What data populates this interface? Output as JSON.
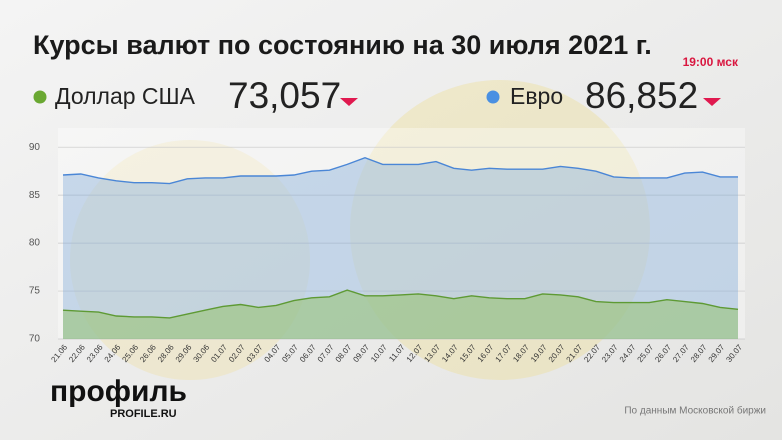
{
  "chart_data": {
    "type": "area-line",
    "title": "Курсы валют по состоянию на 30 июля 2021 г.",
    "subtitle": "19:00 мск",
    "source": "По данным Московской биржи",
    "brand": "профиль",
    "brand_site": "PROFILE.RU",
    "categories": [
      "21.06",
      "22.06",
      "23.06",
      "24.06",
      "25.06",
      "26.06",
      "28.06",
      "29.06",
      "30.06",
      "01.07",
      "02.07",
      "03.07",
      "04.07",
      "05.07",
      "06.07",
      "07.07",
      "08.07",
      "09.07",
      "10.07",
      "11.07",
      "12.07",
      "13.07",
      "14.07",
      "15.07",
      "16.07",
      "17.07",
      "18.07",
      "19.07",
      "20.07",
      "21.07",
      "22.07",
      "23.07",
      "24.07",
      "25.07",
      "26.07",
      "27.07",
      "28.07",
      "29.07",
      "30.07"
    ],
    "series": [
      {
        "name": "Евро",
        "color": "#4a86d6",
        "dot_color": "#4a90e2",
        "fill": "rgba(120,165,215,0.38)",
        "current_value": 86.852,
        "current_label": "86,852",
        "values": [
          87.1,
          87.2,
          86.8,
          86.5,
          86.3,
          86.3,
          86.2,
          86.7,
          86.8,
          86.8,
          87.0,
          87.0,
          87.0,
          87.1,
          87.5,
          87.6,
          88.2,
          88.9,
          88.2,
          88.2,
          88.2,
          88.5,
          87.8,
          87.6,
          87.8,
          87.7,
          87.7,
          87.7,
          88.0,
          87.8,
          87.5,
          86.9,
          86.8,
          86.8,
          86.8,
          87.3,
          87.4,
          86.9,
          86.9
        ]
      },
      {
        "name": "Доллар США",
        "color": "#5e9a34",
        "dot_color": "#6aa832",
        "fill": "rgba(140,190,85,0.45)",
        "current_value": 73.057,
        "current_label": "73,057",
        "values": [
          73.0,
          72.9,
          72.8,
          72.4,
          72.3,
          72.3,
          72.2,
          72.6,
          73.0,
          73.4,
          73.6,
          73.3,
          73.5,
          74.0,
          74.3,
          74.4,
          75.1,
          74.5,
          74.5,
          74.6,
          74.7,
          74.5,
          74.2,
          74.5,
          74.3,
          74.2,
          74.2,
          74.7,
          74.6,
          74.4,
          73.9,
          73.8,
          73.8,
          73.8,
          74.1,
          73.9,
          73.7,
          73.3,
          73.1
        ]
      }
    ],
    "ylim": [
      70,
      92
    ],
    "yticks": [
      70,
      75,
      80,
      85,
      90
    ],
    "grid": true
  }
}
